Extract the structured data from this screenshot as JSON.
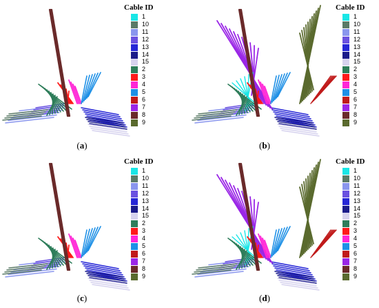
{
  "legend_title": "Cable ID",
  "legend": [
    {
      "id": "1",
      "color": "#19e6e6"
    },
    {
      "id": "10",
      "color": "#5a7a66"
    },
    {
      "id": "11",
      "color": "#8a96ee"
    },
    {
      "id": "12",
      "color": "#6a50e0"
    },
    {
      "id": "13",
      "color": "#2626d6"
    },
    {
      "id": "14",
      "color": "#1a1a8a"
    },
    {
      "id": "15",
      "color": "#d6d2ee"
    },
    {
      "id": "2",
      "color": "#2e7d5a"
    },
    {
      "id": "3",
      "color": "#ff1a1a"
    },
    {
      "id": "4",
      "color": "#ff26d6"
    },
    {
      "id": "5",
      "color": "#1e90e6"
    },
    {
      "id": "6",
      "color": "#c01a1a"
    },
    {
      "id": "7",
      "color": "#9a26e6"
    },
    {
      "id": "8",
      "color": "#6a2a2a"
    },
    {
      "id": "9",
      "color": "#5a6a2e"
    }
  ],
  "panels": [
    {
      "label": "a",
      "variant": "base"
    },
    {
      "label": "b",
      "variant": "full"
    },
    {
      "label": "c",
      "variant": "base"
    },
    {
      "label": "d",
      "variant": "full"
    }
  ],
  "captions": [
    "a",
    "b",
    "c",
    "d"
  ]
}
